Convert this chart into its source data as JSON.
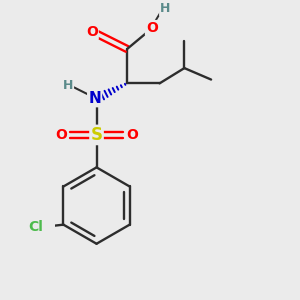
{
  "bg_color": "#ebebeb",
  "bond_color": "#2d2d2d",
  "colors": {
    "O": "#ff0000",
    "N": "#0000cc",
    "S": "#cccc00",
    "Cl": "#4dbb4d",
    "C": "#2d2d2d",
    "H": "#5a8a8a"
  },
  "figsize": [
    3.0,
    3.0
  ],
  "dpi": 100
}
